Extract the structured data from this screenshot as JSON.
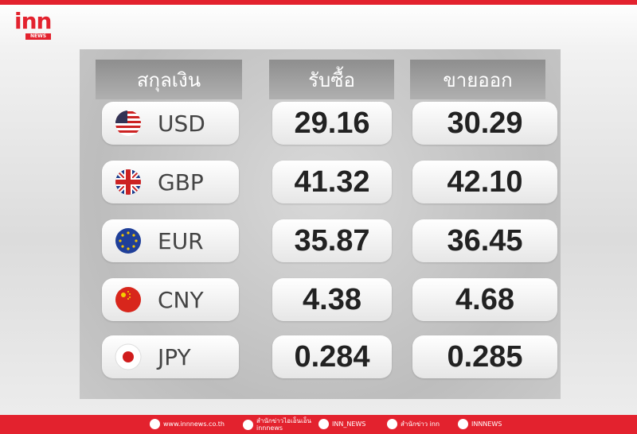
{
  "header": {
    "logo": "inn",
    "logo_sub": "NEWS"
  },
  "table": {
    "columns": [
      "สกุลเงิน",
      "รับซื้อ",
      "ขายออก"
    ],
    "rows": [
      [
        "USD",
        "29.16",
        "30.29"
      ],
      [
        "GBP",
        "41.32",
        "42.10"
      ],
      [
        "EUR",
        "35.87",
        "36.45"
      ],
      [
        "CNY",
        "4.38",
        "4.68"
      ],
      [
        "JPY",
        "0.284",
        "0.285"
      ]
    ]
  },
  "footer": [
    "www.innnews.co.th",
    "สำนักข่าวไอเอ็นเอ็น",
    "innnews",
    "INN_NEWS",
    "สำนักข่าว inn",
    "INNNEWS"
  ]
}
